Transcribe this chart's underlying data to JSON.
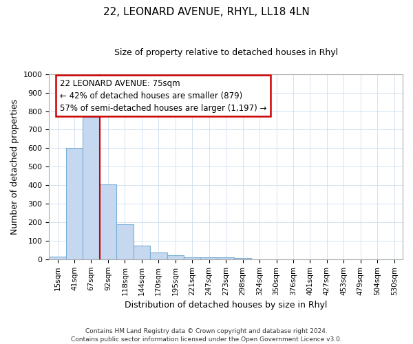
{
  "title": "22, LEONARD AVENUE, RHYL, LL18 4LN",
  "subtitle": "Size of property relative to detached houses in Rhyl",
  "xlabel": "Distribution of detached houses by size in Rhyl",
  "ylabel": "Number of detached properties",
  "categories": [
    "15sqm",
    "41sqm",
    "67sqm",
    "92sqm",
    "118sqm",
    "144sqm",
    "170sqm",
    "195sqm",
    "221sqm",
    "247sqm",
    "273sqm",
    "298sqm",
    "324sqm",
    "350sqm",
    "376sqm",
    "401sqm",
    "427sqm",
    "453sqm",
    "479sqm",
    "504sqm",
    "530sqm"
  ],
  "values": [
    15,
    600,
    770,
    405,
    190,
    75,
    38,
    20,
    10,
    12,
    10,
    8,
    0,
    0,
    0,
    0,
    0,
    0,
    0,
    0,
    0
  ],
  "bar_color": "#c5d8f0",
  "bar_edge_color": "#7aafd4",
  "ylim": [
    0,
    1000
  ],
  "yticks": [
    0,
    100,
    200,
    300,
    400,
    500,
    600,
    700,
    800,
    900,
    1000
  ],
  "property_line_color": "#cc0000",
  "annotation_line1": "22 LEONARD AVENUE: 75sqm",
  "annotation_line2": "← 42% of detached houses are smaller (879)",
  "annotation_line3": "57% of semi-detached houses are larger (1,197) →",
  "annotation_box_color": "#cc0000",
  "footer_text": "Contains HM Land Registry data © Crown copyright and database right 2024.\nContains public sector information licensed under the Open Government Licence v3.0.",
  "bg_color": "#ffffff",
  "grid_color": "#ccddee",
  "title_fontsize": 11,
  "subtitle_fontsize": 9
}
